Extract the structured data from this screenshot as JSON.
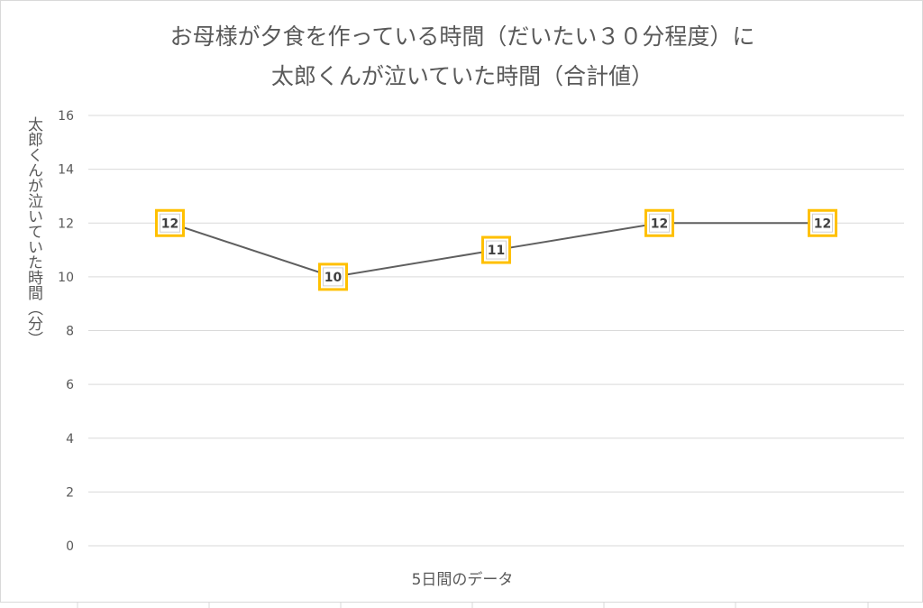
{
  "chart_data": {
    "type": "line",
    "title_lines": [
      "お母様が夕食を作っている時間（だいたい３０分程度）に",
      "太郎くんが泣いていた時間（合計値）"
    ],
    "xlabel": "5日間のデータ",
    "ylabel": "太郎くんが泣いていた時間（分）",
    "ylim": [
      0,
      16
    ],
    "yticks": [
      "0",
      "2",
      "4",
      "6",
      "8",
      "10",
      "12",
      "14",
      "16"
    ],
    "grid": true,
    "legend": "none",
    "series": [
      {
        "values": [
          12,
          10,
          11,
          12,
          12
        ],
        "labels": [
          "12",
          "10",
          "11",
          "12",
          "12"
        ]
      }
    ],
    "colors": {
      "line": "#5f5f5f",
      "marker_border": "#ffc000",
      "marker_fill": "#ffffff",
      "grid": "#d9d9d9",
      "text": "#595959"
    }
  }
}
